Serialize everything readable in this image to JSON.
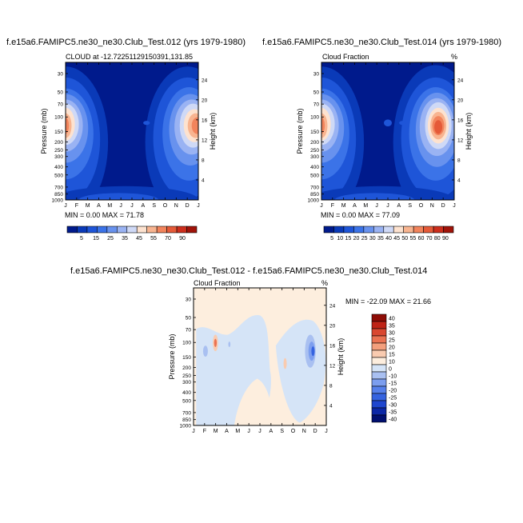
{
  "palette": {
    "cloud": [
      "#001a8c",
      "#0a3ab8",
      "#1e55d8",
      "#3b73e8",
      "#6892ee",
      "#9ab3f3",
      "#cfd9f6",
      "#fde2cf",
      "#f8b490",
      "#f2845c",
      "#e55a38",
      "#cc2e1c",
      "#a01309"
    ],
    "diff": [
      "#000f70",
      "#0b27a6",
      "#1e46cf",
      "#3563e0",
      "#5680eb",
      "#7c9eef",
      "#a9c0f1",
      "#d5e4f7",
      "#fdeede",
      "#f9cbb0",
      "#f39f7d",
      "#ea7252",
      "#d94730",
      "#bf2316",
      "#8e0c05"
    ]
  },
  "months": [
    "J",
    "F",
    "M",
    "A",
    "M",
    "J",
    "J",
    "A",
    "S",
    "O",
    "N",
    "D",
    "J"
  ],
  "pressure_ticks": [
    "30",
    "50",
    "70",
    "100",
    "150",
    "200",
    "250",
    "300",
    "400",
    "500",
    "700",
    "850",
    "1000"
  ],
  "height_ticks": [
    "24",
    "20",
    "16",
    "12",
    "8",
    "4"
  ],
  "axis": {
    "ylabel": "Pressure (mb)",
    "ylabel_right": "Height (km)"
  },
  "panel1": {
    "title": "f.e15a6.FAMIPC5.ne30_ne30.Club_Test.012 (yrs 1979-1980)",
    "left_label": "CLOUD at -12.72251129150391,131.85",
    "right_label": "",
    "minmax": "MIN =   0.00 MAX =  71.78",
    "colorbar_labels": [
      "5",
      "15",
      "25",
      "35",
      "45",
      "55",
      "70",
      "90"
    ]
  },
  "panel2": {
    "title": "f.e15a6.FAMIPC5.ne30_ne30.Club_Test.014 (yrs 1979-1980)",
    "left_label": "Cloud Fraction",
    "right_label": "%",
    "minmax": "MIN =   0.00 MAX =  77.09",
    "colorbar_labels": [
      "5",
      "10",
      "15",
      "20",
      "25",
      "30",
      "35",
      "40",
      "45",
      "50",
      "55",
      "60",
      "70",
      "80",
      "90"
    ]
  },
  "panel3": {
    "title": "f.e15a6.FAMIPC5.ne30_ne30.Club_Test.012 - f.e15a6.FAMIPC5.ne30_ne30.Club_Test.014",
    "left_label": "Cloud Fraction",
    "right_label": "%",
    "minmax": "MIN = -22.09 MAX =  21.66",
    "colorbar_labels": [
      "40",
      "35",
      "30",
      "25",
      "20",
      "15",
      "10",
      "0",
      "-10",
      "-15",
      "-20",
      "-25",
      "-30",
      "-35",
      "-40"
    ]
  },
  "chart_data": [
    {
      "type": "heatmap",
      "title": "f.e15a6.FAMIPC5.ne30_ne30.Club_Test.012 (yrs 1979-1980)",
      "subtitle": "CLOUD at -12.72251129150391,131.85",
      "xlabel": "",
      "ylabel": "Pressure (mb)",
      "ylabel_right": "Height (km)",
      "x": [
        "J",
        "F",
        "M",
        "A",
        "M",
        "J",
        "J",
        "A",
        "S",
        "O",
        "N",
        "D",
        "J"
      ],
      "y_pressure": [
        30,
        50,
        70,
        100,
        150,
        200,
        250,
        300,
        400,
        500,
        700,
        850,
        1000
      ],
      "y_scale": "log-pressure",
      "min": 0.0,
      "max": 71.78,
      "levels": [
        5,
        10,
        15,
        20,
        25,
        30,
        35,
        40,
        45,
        50,
        55,
        60,
        70,
        80,
        90
      ]
    },
    {
      "type": "heatmap",
      "title": "f.e15a6.FAMIPC5.ne30_ne30.Club_Test.014 (yrs 1979-1980)",
      "subtitle": "Cloud Fraction",
      "units": "%",
      "xlabel": "",
      "ylabel": "Pressure (mb)",
      "ylabel_right": "Height (km)",
      "x": [
        "J",
        "F",
        "M",
        "A",
        "M",
        "J",
        "J",
        "A",
        "S",
        "O",
        "N",
        "D",
        "J"
      ],
      "y_pressure": [
        30,
        50,
        70,
        100,
        150,
        200,
        250,
        300,
        400,
        500,
        700,
        850,
        1000
      ],
      "y_scale": "log-pressure",
      "min": 0.0,
      "max": 77.09,
      "levels": [
        5,
        10,
        15,
        20,
        25,
        30,
        35,
        40,
        45,
        50,
        55,
        60,
        70,
        80,
        90
      ]
    },
    {
      "type": "heatmap",
      "title": "f.e15a6.FAMIPC5.ne30_ne30.Club_Test.012 - f.e15a6.FAMIPC5.ne30_ne30.Club_Test.014",
      "subtitle": "Cloud Fraction",
      "units": "%",
      "xlabel": "",
      "ylabel": "Pressure (mb)",
      "ylabel_right": "Height (km)",
      "x": [
        "J",
        "F",
        "M",
        "A",
        "M",
        "J",
        "J",
        "A",
        "S",
        "O",
        "N",
        "D",
        "J"
      ],
      "y_pressure": [
        30,
        50,
        70,
        100,
        150,
        200,
        250,
        300,
        400,
        500,
        700,
        850,
        1000
      ],
      "y_scale": "log-pressure",
      "min": -22.09,
      "max": 21.66,
      "levels": [
        -40,
        -35,
        -30,
        -25,
        -20,
        -15,
        -10,
        0,
        10,
        15,
        20,
        25,
        30,
        35,
        40
      ]
    }
  ]
}
